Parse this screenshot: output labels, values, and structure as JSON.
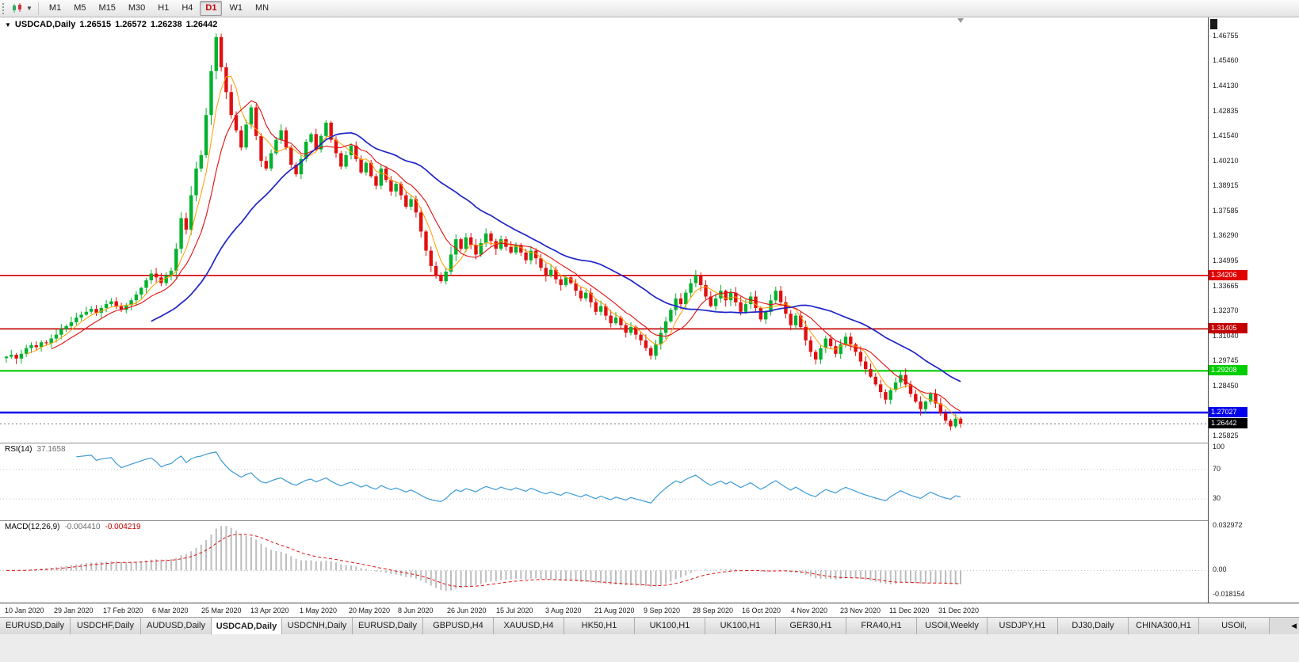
{
  "toolbar": {
    "timeframes": [
      "M1",
      "M5",
      "M15",
      "M30",
      "H1",
      "H4",
      "D1",
      "W1",
      "MN"
    ],
    "active": "D1"
  },
  "chart": {
    "title": {
      "symbol": "USDCAD,Daily",
      "open": "1.26515",
      "high": "1.26572",
      "low": "1.26238",
      "close": "1.26442"
    },
    "rsi_label": "RSI(14)",
    "rsi_value": "37.1658",
    "macd_label": "MACD(12,26,9)",
    "macd_value_main": "-0.004410",
    "macd_value_signal": "-0.004219"
  },
  "chart_data": {
    "type": "candlestick",
    "symbol": "USDCAD",
    "timeframe": "Daily",
    "x_labels": [
      "10 Jan 2020",
      "29 Jan 2020",
      "17 Feb 2020",
      "6 Mar 2020",
      "25 Mar 2020",
      "13 Apr 2020",
      "1 May 2020",
      "20 May 2020",
      "8 Jun 2020",
      "26 Jun 2020",
      "15 Jul 2020",
      "3 Aug 2020",
      "21 Aug 2020",
      "9 Sep 2020",
      "28 Sep 2020",
      "16 Oct 2020",
      "4 Nov 2020",
      "23 Nov 2020",
      "11 Dec 2020",
      "31 Dec 2020"
    ],
    "closes": [
      1.2995,
      1.3005,
      1.2985,
      1.301,
      1.304,
      1.3055,
      1.3045,
      1.307,
      1.3065,
      1.309,
      1.311,
      1.314,
      1.3155,
      1.3175,
      1.32,
      1.3215,
      1.323,
      1.3245,
      1.3225,
      1.325,
      1.327,
      1.3285,
      1.326,
      1.324,
      1.3265,
      1.329,
      1.332,
      1.3355,
      1.3395,
      1.343,
      1.341,
      1.338,
      1.342,
      1.3445,
      1.356,
      1.372,
      1.366,
      1.384,
      1.398,
      1.405,
      1.426,
      1.449,
      1.4668,
      1.451,
      1.438,
      1.426,
      1.418,
      1.409,
      1.421,
      1.43,
      1.415,
      1.402,
      1.398,
      1.406,
      1.413,
      1.418,
      1.409,
      1.4,
      1.395,
      1.403,
      1.412,
      1.416,
      1.408,
      1.415,
      1.422,
      1.413,
      1.406,
      1.399,
      1.405,
      1.41,
      1.403,
      1.396,
      1.401,
      1.394,
      1.389,
      1.398,
      1.392,
      1.386,
      1.39,
      1.384,
      1.378,
      1.382,
      1.375,
      1.365,
      1.355,
      1.347,
      1.342,
      1.339,
      1.344,
      1.353,
      1.361,
      1.356,
      1.362,
      1.358,
      1.353,
      1.359,
      1.364,
      1.36,
      1.356,
      1.361,
      1.357,
      1.354,
      1.358,
      1.354,
      1.35,
      1.355,
      1.351,
      1.346,
      1.342,
      1.345,
      1.34,
      1.337,
      1.341,
      1.338,
      1.334,
      1.33,
      1.333,
      1.328,
      1.323,
      1.326,
      1.321,
      1.317,
      1.32,
      1.316,
      1.312,
      1.315,
      1.311,
      1.308,
      1.304,
      1.3,
      1.306,
      1.312,
      1.318,
      1.324,
      1.33,
      1.327,
      1.333,
      1.338,
      1.342,
      1.337,
      1.331,
      1.326,
      1.33,
      1.334,
      1.329,
      1.333,
      1.328,
      1.323,
      1.327,
      1.331,
      1.325,
      1.319,
      1.323,
      1.329,
      1.334,
      1.328,
      1.322,
      1.316,
      1.321,
      1.315,
      1.308,
      1.302,
      1.298,
      1.304,
      1.309,
      1.305,
      1.301,
      1.306,
      1.31,
      1.306,
      1.302,
      1.297,
      1.293,
      1.289,
      1.285,
      1.281,
      1.277,
      1.282,
      1.286,
      1.29,
      1.285,
      1.28,
      1.276,
      1.272,
      1.276,
      1.28,
      1.275,
      1.27,
      1.266,
      1.263,
      1.267,
      1.2644
    ],
    "price_range": {
      "min": 1.2545,
      "max": 1.4771
    },
    "price_ticks": [
      "1.46755",
      "1.45460",
      "1.44130",
      "1.42835",
      "1.41540",
      "1.40210",
      "1.38915",
      "1.37585",
      "1.36290",
      "1.34995",
      "1.33665",
      "1.32370",
      "1.31040",
      "1.29745",
      "1.28450",
      "1.25825"
    ],
    "candle_colors": {
      "bull": "#00B22D",
      "bear": "#E01010"
    },
    "moving_averages": [
      {
        "name": "ma-line-fast",
        "period": 5,
        "color": "#FF9C00",
        "width": 1
      },
      {
        "name": "ma-line-mid",
        "period": 10,
        "color": "#E01010",
        "width": 1.1
      },
      {
        "name": "ma-line-slow",
        "period": 30,
        "color": "#1F24C8",
        "width": 1.7
      }
    ],
    "h_lines": [
      {
        "label": "1.34206",
        "price": 1.34206,
        "color": "#E00000",
        "width": 1.6
      },
      {
        "label": "1.31405",
        "price": 1.31405,
        "color": "#C40000",
        "width": 1.6
      },
      {
        "label": "1.29208",
        "price": 1.29208,
        "color": "#00CE00",
        "width": 2.2
      },
      {
        "label": "1.27027",
        "price": 1.27027,
        "color": "#0000EE",
        "width": 2.6
      }
    ],
    "current_price": {
      "label": "1.26442",
      "price": 1.26442,
      "color": "#000000"
    },
    "rsi": {
      "period": 14,
      "color": "#3E9BD6",
      "levels": [
        70,
        30
      ],
      "ticks": [
        {
          "label": "100",
          "value": 100
        },
        {
          "label": "70",
          "value": 70
        },
        {
          "label": "30",
          "value": 30
        }
      ],
      "range": {
        "min": 0,
        "max": 100
      }
    },
    "macd": {
      "fast": 12,
      "slow": 26,
      "signal": 9,
      "hist_color": "#BDBDBD",
      "signal_color": "#E01010",
      "ticks": [
        {
          "label": "0.032972",
          "value": 0.032972
        },
        {
          "label": "0.00",
          "value": 0
        },
        {
          "label": "-0.018154",
          "value": -0.018154
        }
      ],
      "range": {
        "min": -0.0237,
        "max": 0.0364
      }
    }
  },
  "tabs": {
    "items": [
      "EURUSD,Daily",
      "USDCHF,Daily",
      "AUDUSD,Daily",
      "USDCAD,Daily",
      "USDCNH,Daily",
      "EURUSD,Daily",
      "GBPUSD,H4",
      "XAUUSD,H4",
      "HK50,H1",
      "UK100,H1",
      "UK100,H1",
      "GER30,H1",
      "FRA40,H1",
      "USOil,Weekly",
      "USDJPY,H1",
      "DJ30,Daily",
      "CHINA300,H1",
      "USOil,"
    ],
    "active_index": 3
  }
}
